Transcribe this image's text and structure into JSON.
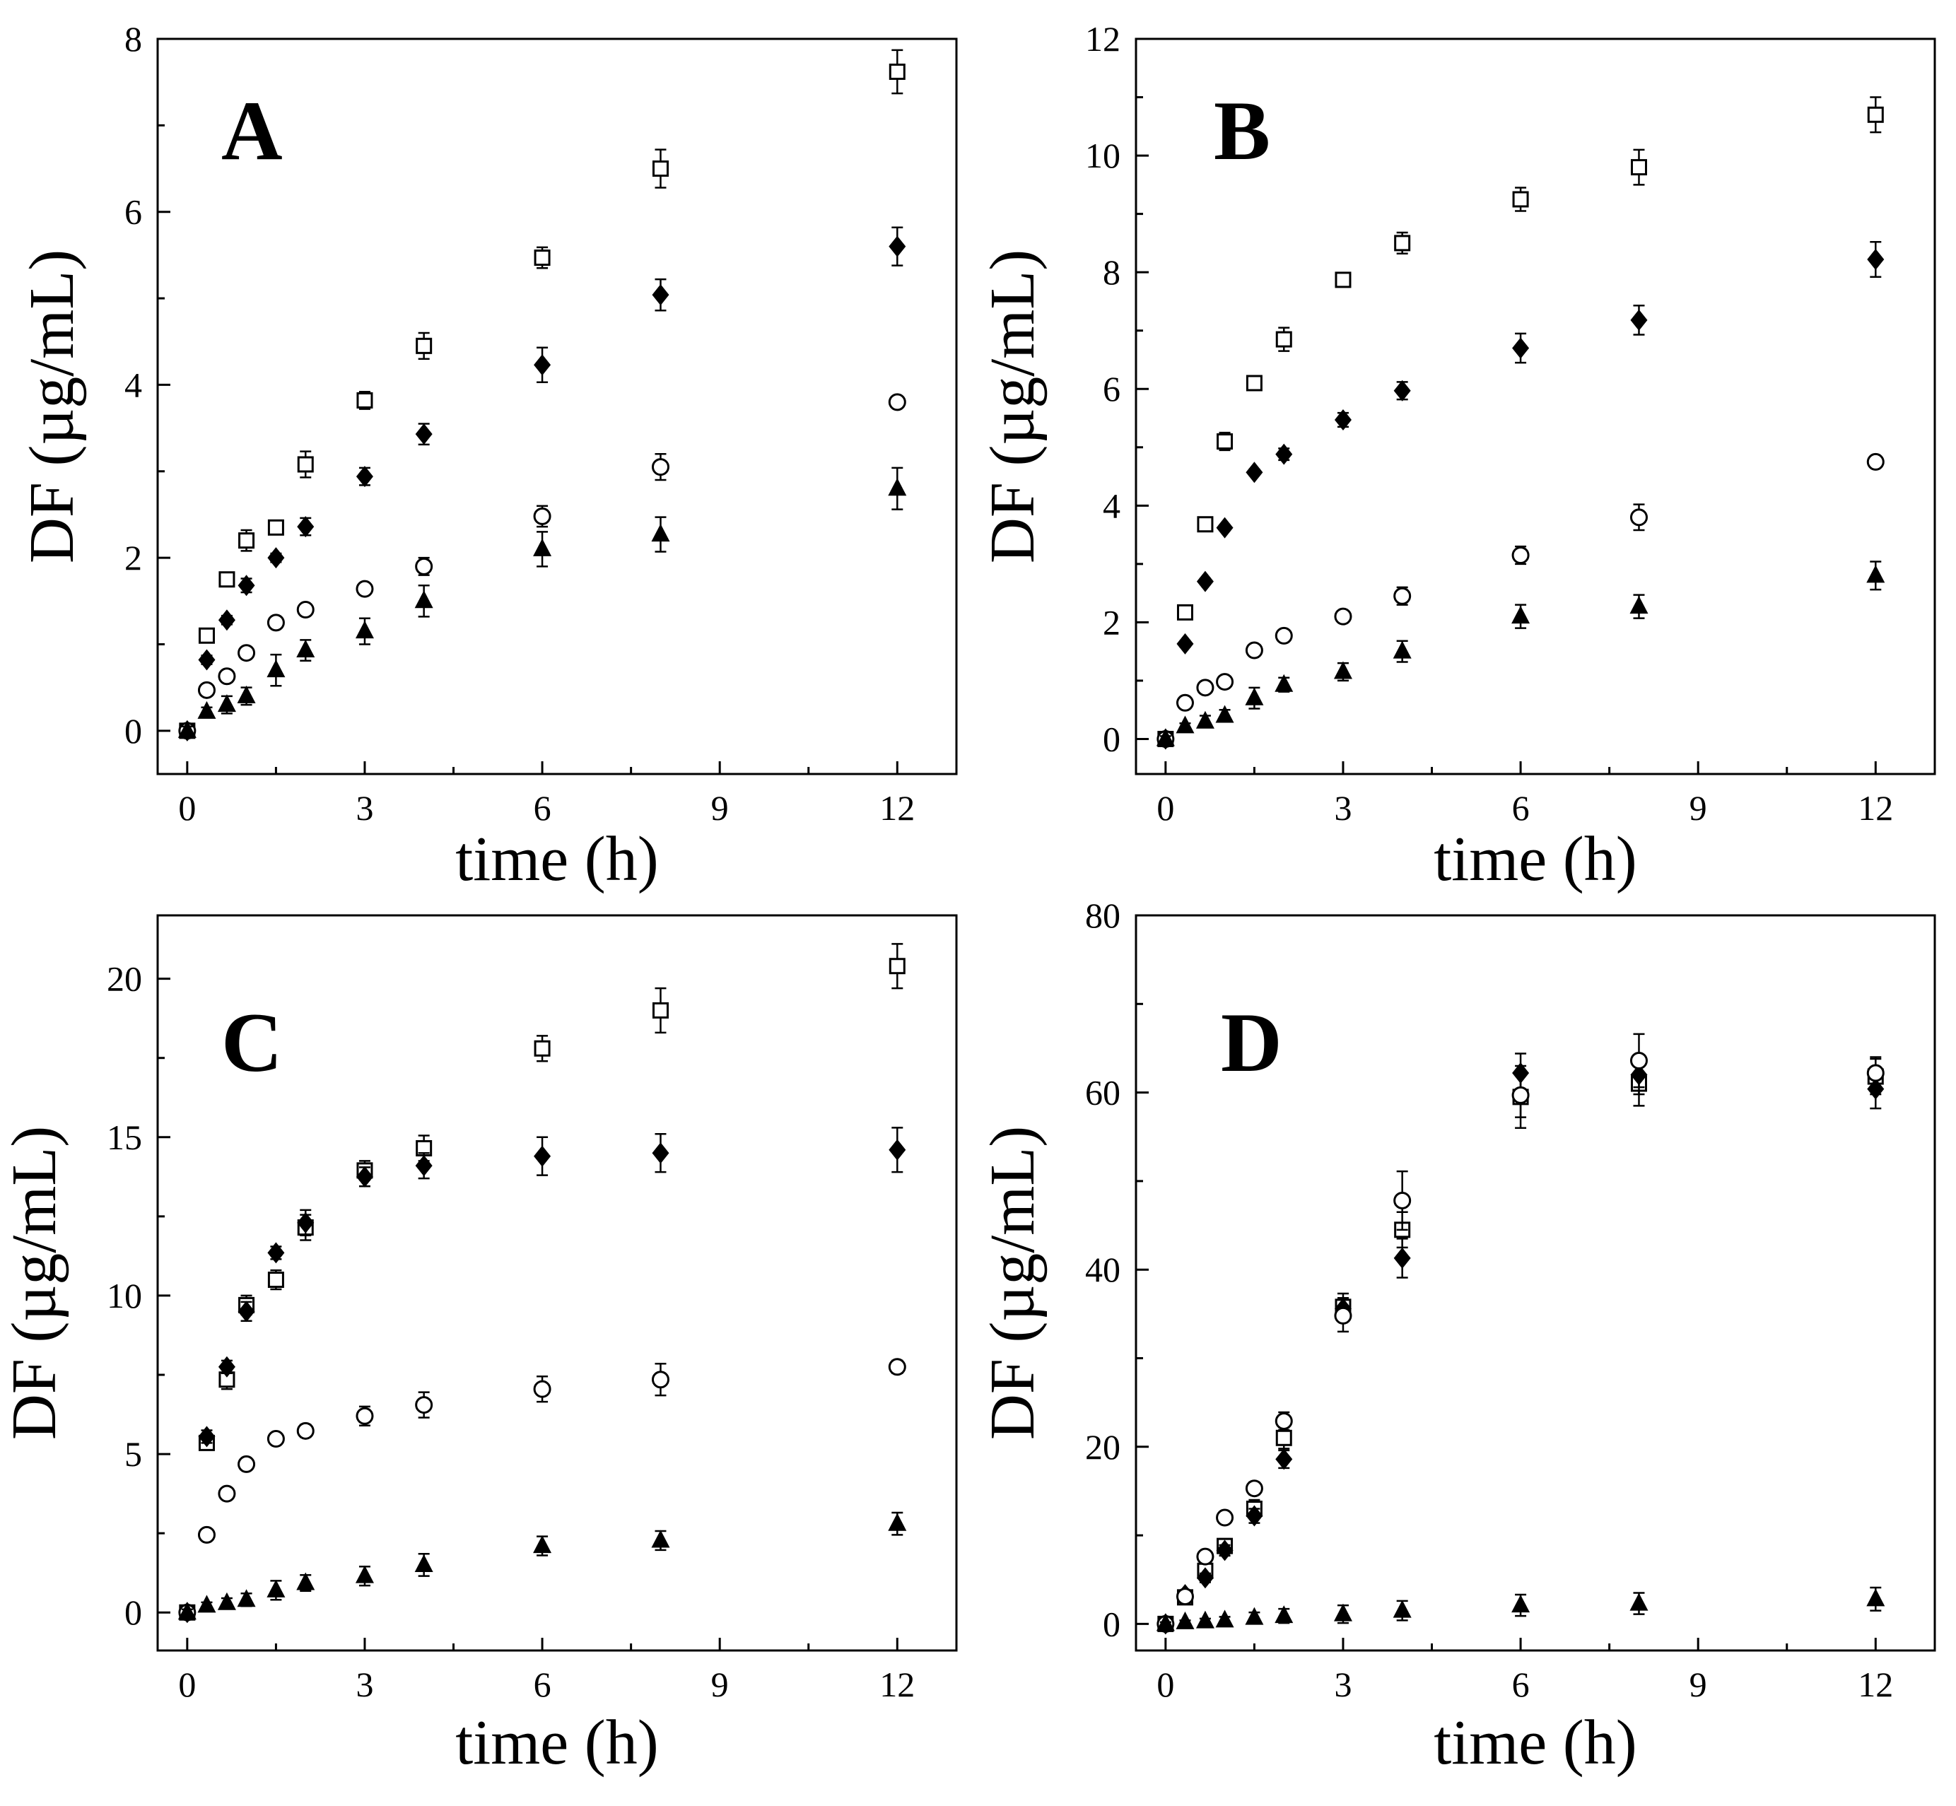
{
  "chart_data": [
    {
      "type": "scatter",
      "panel": "A",
      "xlabel": "time (h)",
      "ylabel": "DF (µg/mL)",
      "xlim": [
        -0.5,
        13
      ],
      "ylim": [
        -0.5,
        8
      ],
      "xticks": [
        0,
        3,
        6,
        9,
        12
      ],
      "xtick_labels": [
        "0",
        "3",
        "6",
        "9",
        "12"
      ],
      "yticks": [
        0,
        2,
        4,
        6,
        8
      ],
      "ytick_labels": [
        "0",
        "2",
        "4",
        "6",
        "8"
      ],
      "x": [
        0,
        0.33,
        0.67,
        1,
        1.5,
        2,
        3,
        4,
        6,
        8,
        12
      ],
      "series": [
        {
          "name": "open-square",
          "marker": "square-open",
          "values": [
            0,
            1.1,
            1.75,
            2.2,
            2.35,
            3.08,
            3.82,
            4.45,
            5.47,
            6.5,
            7.62
          ],
          "errors": [
            0.05,
            0.08,
            0.05,
            0.12,
            0.08,
            0.15,
            0.1,
            0.15,
            0.12,
            0.22,
            0.25
          ]
        },
        {
          "name": "filled-diamond",
          "marker": "diamond-filled",
          "values": [
            0,
            0.82,
            1.28,
            1.68,
            2.0,
            2.36,
            2.94,
            3.43,
            4.23,
            5.04,
            5.6
          ],
          "errors": [
            0.05,
            0.05,
            0.05,
            0.08,
            0.05,
            0.1,
            0.1,
            0.12,
            0.2,
            0.18,
            0.22
          ]
        },
        {
          "name": "open-circle",
          "marker": "circle-open",
          "values": [
            0,
            0.47,
            0.63,
            0.9,
            1.25,
            1.4,
            1.64,
            1.9,
            2.48,
            3.05,
            3.8
          ],
          "errors": [
            0.05,
            0.05,
            0.05,
            0.06,
            0.05,
            0.05,
            0.06,
            0.1,
            0.12,
            0.15,
            0.05
          ]
        },
        {
          "name": "filled-triangle",
          "marker": "triangle-filled",
          "values": [
            0,
            0.22,
            0.3,
            0.4,
            0.7,
            0.93,
            1.15,
            1.5,
            2.1,
            2.27,
            2.8
          ],
          "errors": [
            0.05,
            0.05,
            0.1,
            0.1,
            0.18,
            0.12,
            0.15,
            0.18,
            0.2,
            0.2,
            0.24
          ]
        }
      ]
    },
    {
      "type": "scatter",
      "panel": "B",
      "xlabel": "time (h)",
      "ylabel": "DF (µg/mL)",
      "xlim": [
        -0.5,
        13
      ],
      "ylim": [
        -0.6,
        12
      ],
      "xticks": [
        0,
        3,
        6,
        9,
        12
      ],
      "xtick_labels": [
        "0",
        "3",
        "6",
        "9",
        "12"
      ],
      "yticks": [
        0,
        2,
        4,
        6,
        8,
        10,
        12
      ],
      "ytick_labels": [
        "0",
        "2",
        "4",
        "6",
        "8",
        "10",
        "12"
      ],
      "x": [
        0,
        0.33,
        0.67,
        1,
        1.5,
        2,
        3,
        4,
        6,
        8,
        12
      ],
      "series": [
        {
          "name": "open-square",
          "marker": "square-open",
          "values": [
            0,
            2.17,
            3.68,
            5.1,
            6.1,
            6.85,
            7.87,
            8.5,
            9.25,
            9.8,
            10.7
          ],
          "errors": [
            0.05,
            0.1,
            0.05,
            0.15,
            0.05,
            0.2,
            0.12,
            0.18,
            0.2,
            0.3,
            0.3
          ]
        },
        {
          "name": "filled-diamond",
          "marker": "diamond-filled",
          "values": [
            0,
            1.63,
            2.7,
            3.62,
            4.57,
            4.88,
            5.47,
            5.97,
            6.7,
            7.18,
            8.22
          ],
          "errors": [
            0.05,
            0.05,
            0.05,
            0.05,
            0.05,
            0.1,
            0.12,
            0.15,
            0.25,
            0.25,
            0.3
          ]
        },
        {
          "name": "open-circle",
          "marker": "circle-open",
          "values": [
            0,
            0.62,
            0.88,
            0.98,
            1.52,
            1.77,
            2.1,
            2.45,
            3.15,
            3.8,
            4.75
          ],
          "errors": [
            0.05,
            0.08,
            0.08,
            0.1,
            0.05,
            0.05,
            0.08,
            0.15,
            0.15,
            0.22,
            0.05
          ]
        },
        {
          "name": "filled-triangle",
          "marker": "triangle-filled",
          "values": [
            0,
            0.22,
            0.3,
            0.4,
            0.7,
            0.93,
            1.15,
            1.5,
            2.1,
            2.27,
            2.8
          ],
          "errors": [
            0.05,
            0.05,
            0.1,
            0.1,
            0.18,
            0.12,
            0.15,
            0.18,
            0.2,
            0.2,
            0.24
          ]
        }
      ]
    },
    {
      "type": "scatter",
      "panel": "C",
      "xlabel": "time (h)",
      "ylabel": "DF (µg/mL)",
      "xlim": [
        -0.5,
        13
      ],
      "ylim": [
        -1.2,
        22
      ],
      "xticks": [
        0,
        3,
        6,
        9,
        12
      ],
      "xtick_labels": [
        "0",
        "3",
        "6",
        "9",
        "12"
      ],
      "yticks": [
        0,
        5,
        10,
        15,
        20
      ],
      "ytick_labels": [
        "0",
        "5",
        "10",
        "15",
        "20"
      ],
      "x": [
        0,
        0.33,
        0.67,
        1,
        1.5,
        2,
        3,
        4,
        6,
        8,
        12
      ],
      "series": [
        {
          "name": "open-square",
          "marker": "square-open",
          "values": [
            0,
            5.35,
            7.35,
            9.7,
            10.5,
            12.15,
            13.95,
            14.65,
            17.8,
            19.0,
            20.4
          ],
          "errors": [
            0.1,
            0.2,
            0.3,
            0.3,
            0.3,
            0.4,
            0.3,
            0.4,
            0.4,
            0.7,
            0.7
          ]
        },
        {
          "name": "filled-diamond",
          "marker": "diamond-filled",
          "values": [
            0,
            5.55,
            7.75,
            9.5,
            11.35,
            12.3,
            13.75,
            14.1,
            14.4,
            14.5,
            14.6
          ],
          "errors": [
            0.1,
            0.2,
            0.2,
            0.3,
            0.2,
            0.4,
            0.3,
            0.4,
            0.6,
            0.6,
            0.7
          ]
        },
        {
          "name": "open-circle",
          "marker": "circle-open",
          "values": [
            0,
            2.45,
            3.75,
            4.68,
            5.48,
            5.73,
            6.2,
            6.55,
            7.05,
            7.35,
            7.75
          ],
          "errors": [
            0.1,
            0.1,
            0.1,
            0.1,
            0.1,
            0.2,
            0.3,
            0.4,
            0.4,
            0.5,
            0.2
          ]
        },
        {
          "name": "filled-triangle",
          "marker": "triangle-filled",
          "values": [
            0,
            0.22,
            0.3,
            0.4,
            0.7,
            0.93,
            1.15,
            1.5,
            2.1,
            2.27,
            2.8
          ],
          "errors": [
            0.1,
            0.1,
            0.15,
            0.2,
            0.3,
            0.25,
            0.3,
            0.35,
            0.3,
            0.3,
            0.35
          ]
        }
      ]
    },
    {
      "type": "scatter",
      "panel": "D",
      "xlabel": "time (h)",
      "ylabel": "DF (µg/mL)",
      "xlim": [
        -0.5,
        13
      ],
      "ylim": [
        -3,
        80
      ],
      "xticks": [
        0,
        3,
        6,
        9,
        12
      ],
      "xtick_labels": [
        "0",
        "3",
        "6",
        "9",
        "12"
      ],
      "yticks": [
        0,
        20,
        40,
        60,
        80
      ],
      "ytick_labels": [
        "0",
        "20",
        "40",
        "60",
        "80"
      ],
      "x": [
        0,
        0.33,
        0.67,
        1,
        1.5,
        2,
        3,
        4,
        6,
        8,
        12
      ],
      "series": [
        {
          "name": "open-square",
          "marker": "square-open",
          "values": [
            0,
            3.0,
            6.0,
            8.8,
            13.0,
            21.0,
            35.8,
            44.5,
            59.5,
            61.0,
            61.8
          ],
          "errors": [
            0.3,
            0.5,
            0.6,
            0.8,
            1.0,
            1.2,
            1.5,
            2.0,
            3.5,
            2.5,
            2.0
          ]
        },
        {
          "name": "filled-diamond",
          "marker": "diamond-filled",
          "values": [
            0,
            3.3,
            5.2,
            8.3,
            12.2,
            18.6,
            35.6,
            41.3,
            62.2,
            62.0,
            60.4
          ],
          "errors": [
            0.3,
            0.4,
            0.5,
            0.6,
            0.8,
            1.0,
            1.2,
            2.2,
            2.2,
            2.2,
            2.2
          ]
        },
        {
          "name": "open-circle",
          "marker": "circle-open",
          "values": [
            0,
            3.1,
            7.6,
            12.0,
            15.3,
            22.9,
            34.8,
            47.8,
            59.7,
            63.6,
            62.2
          ],
          "errors": [
            0.3,
            0.4,
            0.5,
            0.6,
            0.7,
            1.0,
            1.8,
            3.3,
            2.5,
            3.0,
            1.8
          ]
        },
        {
          "name": "filled-triangle",
          "marker": "triangle-filled",
          "values": [
            0,
            0.2,
            0.3,
            0.4,
            0.7,
            0.9,
            1.1,
            1.5,
            2.1,
            2.3,
            2.8
          ],
          "errors": [
            0.2,
            0.2,
            0.3,
            0.4,
            0.6,
            0.8,
            1.0,
            1.1,
            1.2,
            1.2,
            1.3
          ]
        }
      ]
    }
  ]
}
